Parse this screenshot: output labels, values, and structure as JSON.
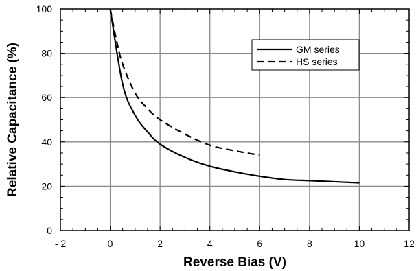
{
  "chart_data": {
    "type": "line",
    "xlabel": "Reverse Bias (V)",
    "ylabel": "Relative Capacitance (%)",
    "xlim": [
      -2,
      12
    ],
    "ylim": [
      0,
      100
    ],
    "x_ticks": [
      -2,
      0,
      2,
      4,
      6,
      8,
      10,
      12
    ],
    "y_ticks": [
      0,
      20,
      40,
      60,
      80,
      100
    ],
    "x_tick_labels": [
      "- 2",
      "0",
      "2",
      "4",
      "6",
      "8",
      "10",
      "12"
    ],
    "y_tick_labels": [
      "0",
      "20",
      "40",
      "60",
      "80",
      "100"
    ],
    "grid": true,
    "legend_position": "top-right",
    "series": [
      {
        "name": "GM series",
        "style": "solid",
        "color": "#000000",
        "x": [
          0,
          0.5,
          1,
          1.5,
          2,
          3,
          4,
          5,
          6,
          7,
          8,
          9,
          10
        ],
        "y": [
          100,
          66,
          52,
          44.5,
          39,
          33,
          29,
          26.5,
          24.5,
          23,
          22.5,
          22,
          21.5
        ]
      },
      {
        "name": "HS series",
        "style": "dashed",
        "color": "#000000",
        "x": [
          0,
          0.25,
          0.5,
          1,
          1.5,
          2,
          3,
          4,
          5,
          6
        ],
        "y": [
          100,
          86,
          75,
          62,
          55,
          50,
          43.5,
          38.5,
          36,
          34
        ]
      }
    ]
  }
}
